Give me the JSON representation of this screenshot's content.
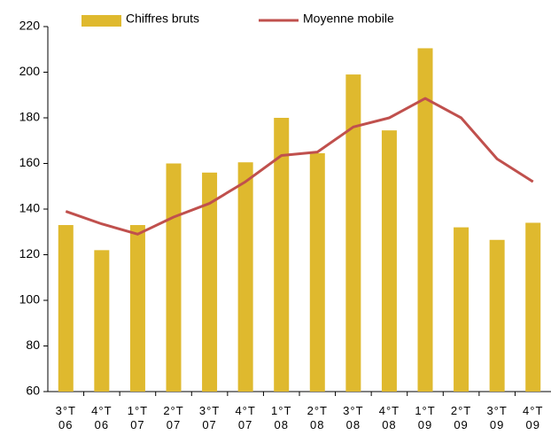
{
  "chart_data": {
    "type": "bar",
    "categories": [
      "3°T 06",
      "4°T 06",
      "1°T 07",
      "2°T 07",
      "3°T 07",
      "4°T 07",
      "1°T 08",
      "2°T 08",
      "3°T 08",
      "4°T 08",
      "1°T 09",
      "2°T 09",
      "3°T 09",
      "4°T 09"
    ],
    "series": [
      {
        "name": "Chiffres bruts",
        "type": "bar",
        "color": "#dfb92e",
        "values": [
          133,
          122,
          133,
          160,
          156,
          160.5,
          180,
          164.5,
          199,
          174.5,
          210.5,
          132,
          126.5,
          134
        ]
      },
      {
        "name": "Moyenne mobile",
        "type": "line",
        "color": "#c0504d",
        "values": [
          139,
          133.5,
          129,
          136.5,
          142.5,
          152,
          163.5,
          165,
          176,
          180,
          188.5,
          180,
          162,
          152
        ]
      }
    ],
    "ylim": [
      60,
      220
    ],
    "yticks": [
      60,
      80,
      100,
      120,
      140,
      160,
      180,
      200,
      220
    ],
    "grid": false
  }
}
